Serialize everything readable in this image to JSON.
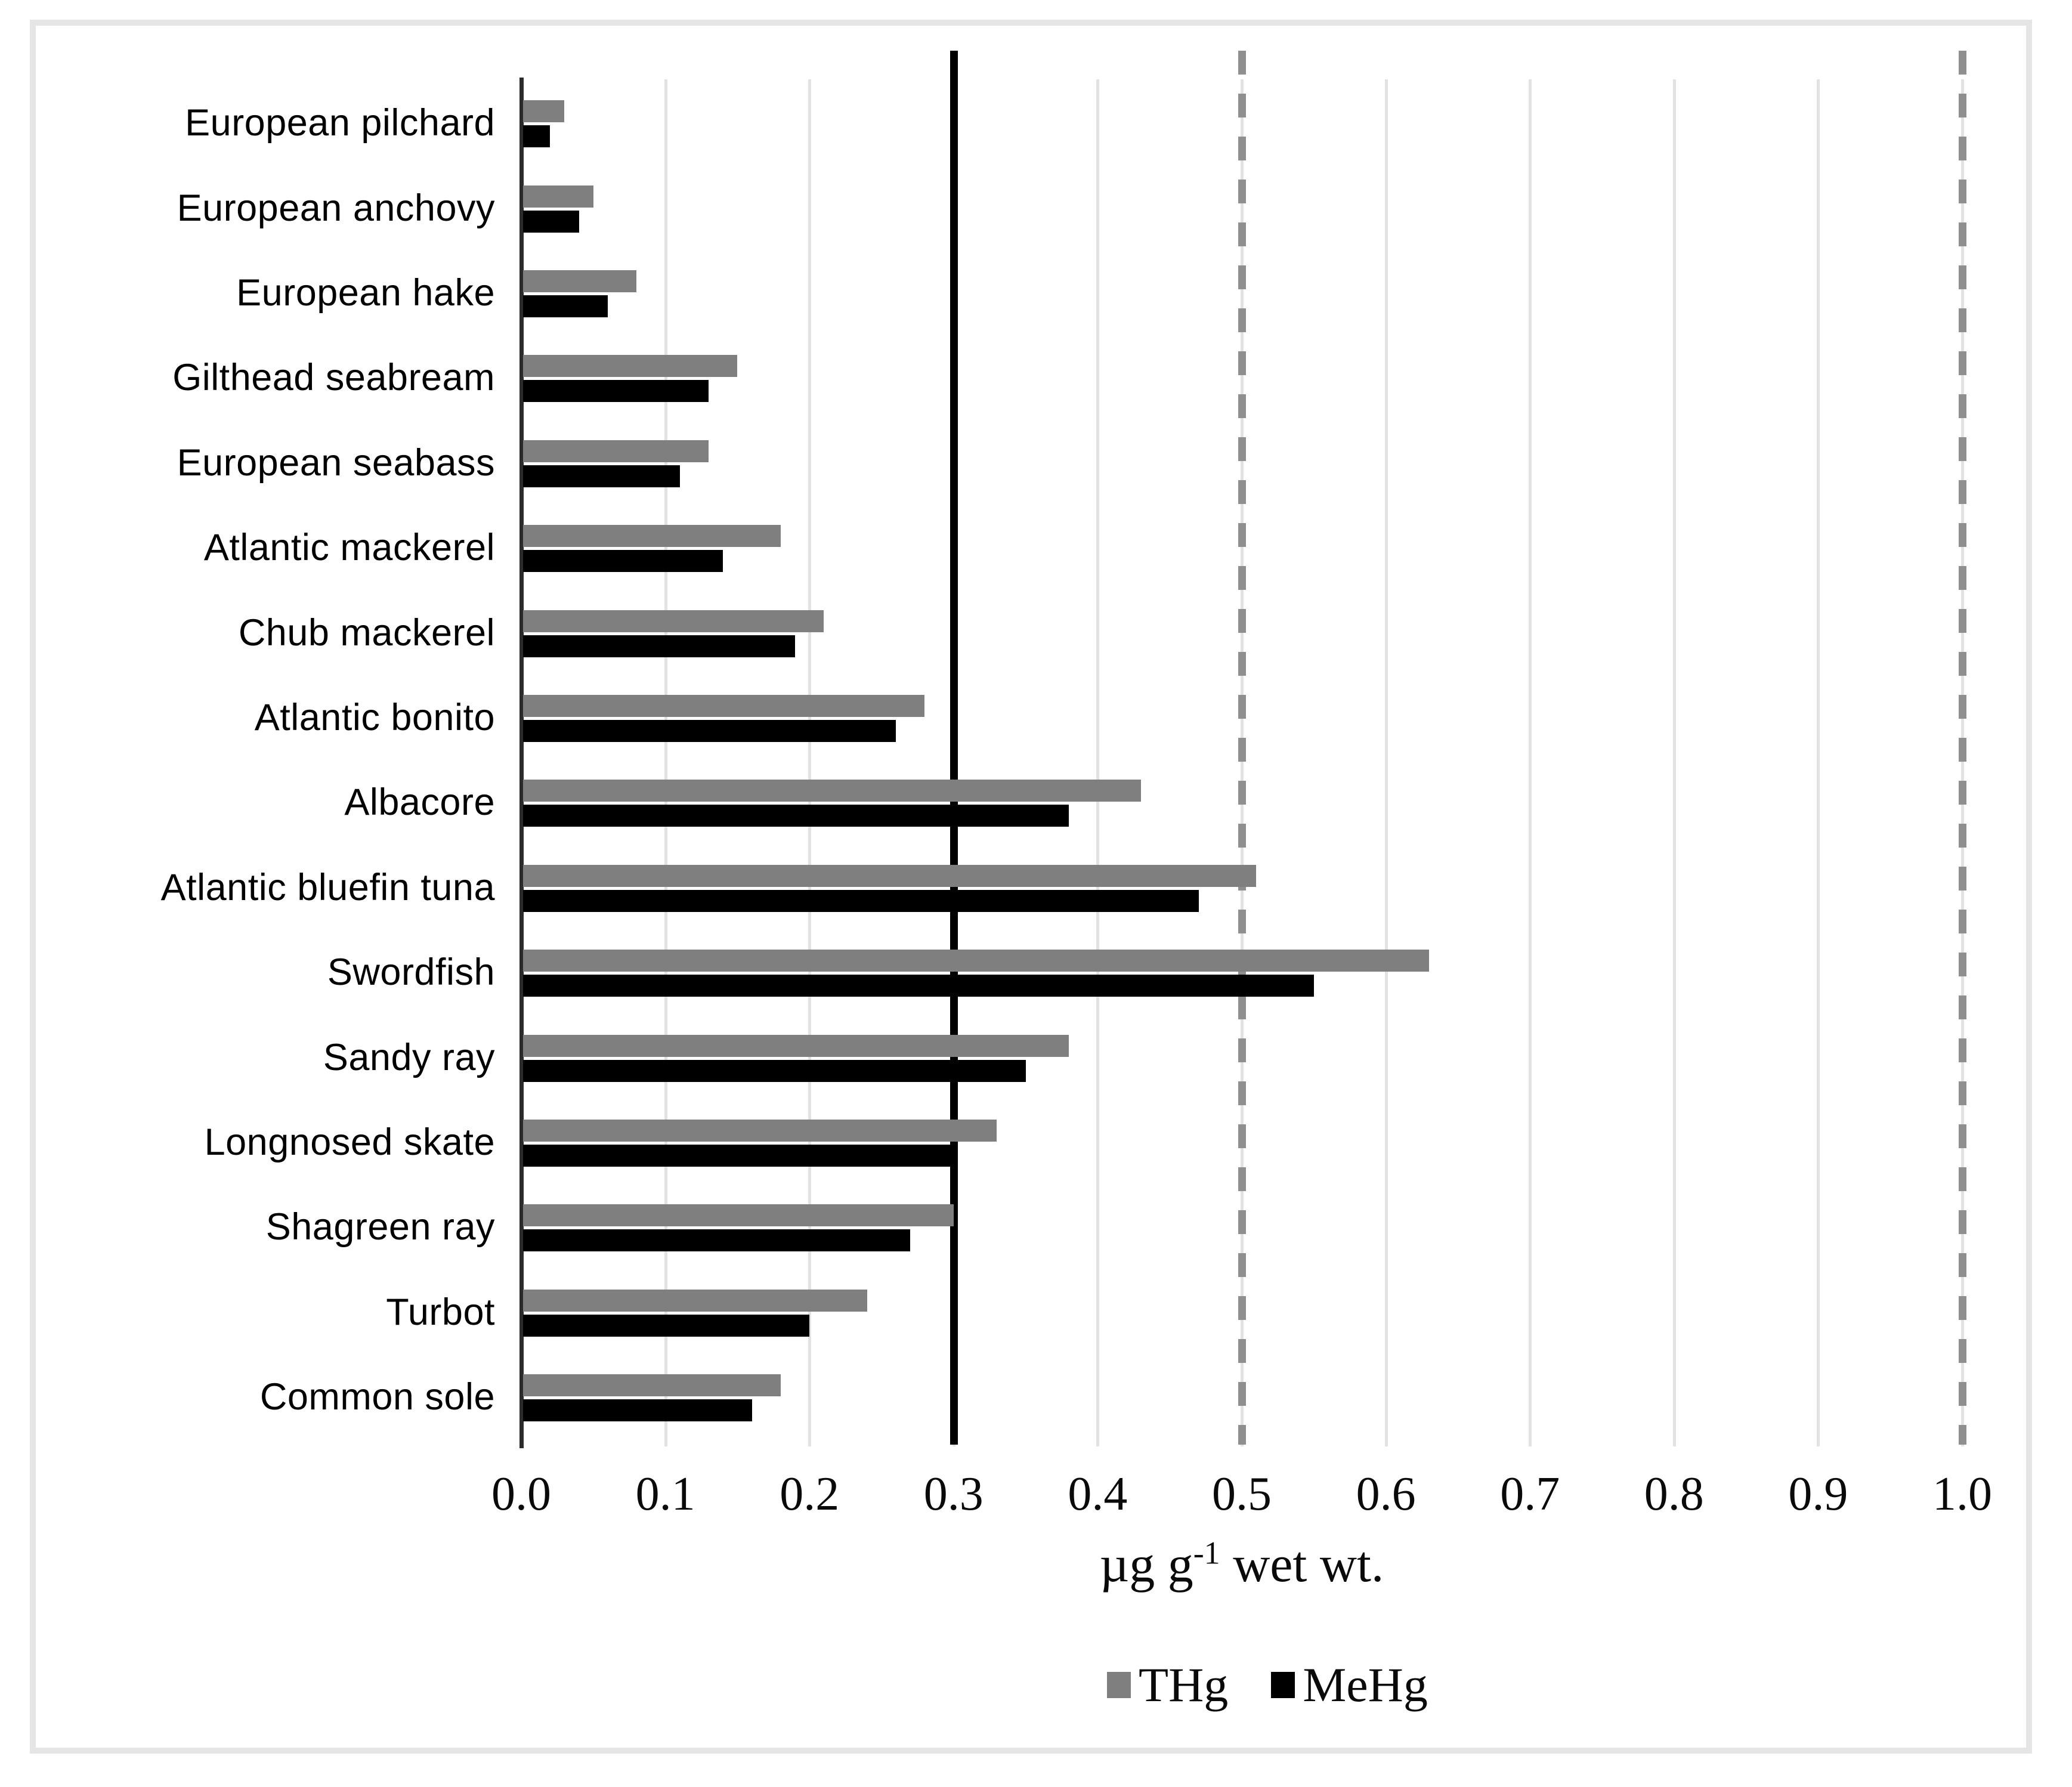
{
  "chart_data": {
    "type": "bar",
    "orientation": "horizontal",
    "title": "",
    "categories": [
      "European pilchard",
      "European anchovy",
      "European hake",
      "Gilthead seabream",
      "European seabass",
      "Atlantic mackerel",
      "Chub mackerel",
      "Atlantic bonito",
      "Albacore",
      "Atlantic bluefin tuna",
      "Swordfish",
      "Sandy ray",
      "Longnosed skate",
      "Shagreen ray",
      "Turbot",
      "Common sole"
    ],
    "series": [
      {
        "name": "THg",
        "color": "#7f7f7f",
        "values": [
          0.03,
          0.05,
          0.08,
          0.15,
          0.13,
          0.18,
          0.21,
          0.28,
          0.43,
          0.51,
          0.63,
          0.38,
          0.33,
          0.3,
          0.24,
          0.18
        ]
      },
      {
        "name": "MeHg",
        "color": "#000000",
        "values": [
          0.02,
          0.04,
          0.06,
          0.13,
          0.11,
          0.14,
          0.19,
          0.26,
          0.38,
          0.47,
          0.55,
          0.35,
          0.3,
          0.27,
          0.2,
          0.16
        ]
      }
    ],
    "x_axis": {
      "label": "µg g-1 wet wt.",
      "label_parts": {
        "prefix": "µg g",
        "superscript": "-1",
        "suffix": " wet wt."
      },
      "min": 0.0,
      "max": 1.0,
      "tick_values": [
        0.0,
        0.1,
        0.2,
        0.3,
        0.4,
        0.5,
        0.6,
        0.7,
        0.8,
        0.9,
        1.0
      ],
      "tick_labels": [
        "0.0",
        "0.1",
        "0.2",
        "0.3",
        "0.4",
        "0.5",
        "0.6",
        "0.7",
        "0.8",
        "0.9",
        "1.0"
      ]
    },
    "reference_lines": [
      {
        "value": 0.3,
        "style": "solid",
        "color": "#000000"
      },
      {
        "value": 0.5,
        "style": "dashed",
        "color": "#8f8f8f"
      },
      {
        "value": 1.0,
        "style": "dashed",
        "color": "#8f8f8f"
      }
    ],
    "grid": {
      "show": true,
      "color": "#e2e2e2",
      "interval": 0.1
    },
    "legend": {
      "position": "bottom",
      "entries": [
        "THg",
        "MeHg"
      ]
    }
  }
}
